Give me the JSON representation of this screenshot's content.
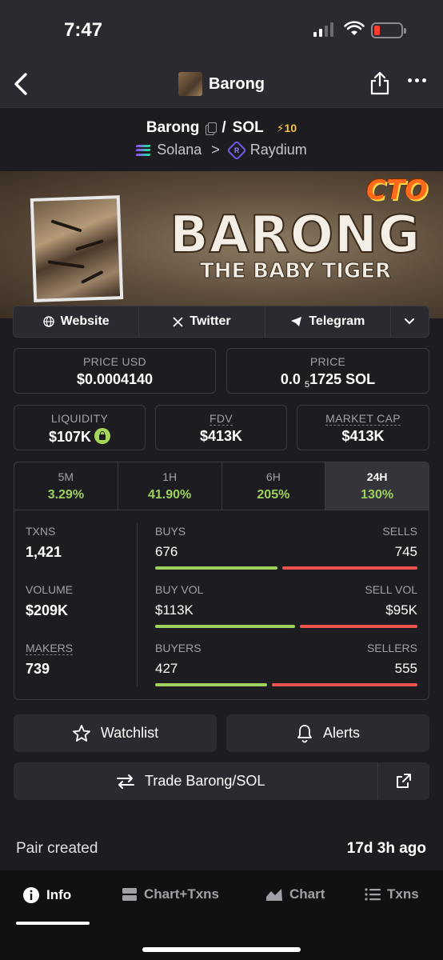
{
  "status": {
    "time": "7:47"
  },
  "nav": {
    "title": "Barong"
  },
  "pair": {
    "base": "Barong",
    "separator": "/",
    "quote": "SOL",
    "boosts": "⚡10",
    "chain": "Solana",
    "chevron": ">",
    "dex": "Raydium"
  },
  "banner": {
    "badge": "CTO",
    "headline": "BARONG",
    "subline": "THE BABY TIGER"
  },
  "links": {
    "website": "Website",
    "twitter": "Twitter",
    "telegram": "Telegram"
  },
  "price_usd": {
    "label": "PRICE USD",
    "value": "$0.0004140"
  },
  "price_native": {
    "label": "PRICE",
    "prefix": "0.0",
    "sub": "5",
    "suffix": "1725 SOL"
  },
  "liquidity": {
    "label": "LIQUIDITY",
    "value": "$107K"
  },
  "fdv": {
    "label": "FDV",
    "value": "$413K"
  },
  "market_cap": {
    "label": "MARKET CAP",
    "value": "$413K"
  },
  "timeframes": [
    {
      "label": "5M",
      "change": "3.29%"
    },
    {
      "label": "1H",
      "change": "41.90%"
    },
    {
      "label": "6H",
      "change": "205%"
    },
    {
      "label": "24H",
      "change": "130%"
    }
  ],
  "stats": {
    "txns": {
      "label": "TXNS",
      "value": "1,421"
    },
    "volume": {
      "label": "VOLUME",
      "value": "$209K"
    },
    "makers": {
      "label": "MAKERS",
      "value": "739"
    },
    "buys": {
      "label": "BUYS",
      "value": "676",
      "sell_label": "SELLS",
      "sell_value": "745",
      "buy_fraction": 0.476
    },
    "buy_vol": {
      "label": "BUY VOL",
      "value": "$113K",
      "sell_label": "SELL VOL",
      "sell_value": "$95K",
      "buy_fraction": 0.543
    },
    "buyers": {
      "label": "BUYERS",
      "value": "427",
      "sell_label": "SELLERS",
      "sell_value": "555",
      "buy_fraction": 0.435
    }
  },
  "actions": {
    "watchlist": "Watchlist",
    "alerts": "Alerts",
    "trade": "Trade Barong/SOL"
  },
  "info": {
    "pair_created_label": "Pair created",
    "pair_created_value": "17d 3h ago"
  },
  "tabs": {
    "info": "Info",
    "chart_txns": "Chart+Txns",
    "chart": "Chart",
    "txns": "Txns"
  },
  "colors": {
    "positive": "#9ed15b",
    "negative": "#ef5350",
    "background": "#1c1c21"
  }
}
